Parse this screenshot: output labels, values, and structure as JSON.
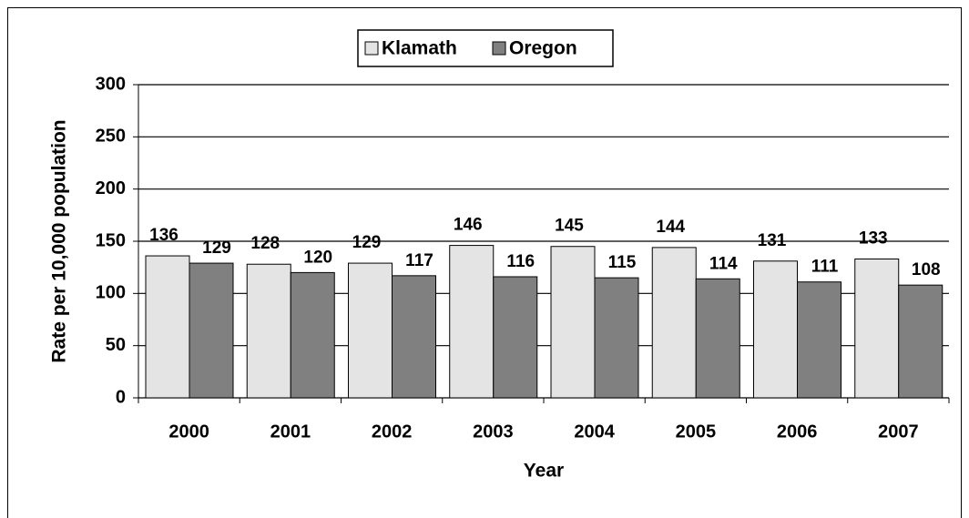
{
  "chart_data": {
    "type": "bar",
    "categories": [
      "2000",
      "2001",
      "2002",
      "2003",
      "2004",
      "2005",
      "2006",
      "2007"
    ],
    "series": [
      {
        "name": "Klamath",
        "color": "#e4e4e4",
        "values": [
          136,
          128,
          129,
          146,
          145,
          144,
          131,
          133
        ]
      },
      {
        "name": "Oregon",
        "color": "#808080",
        "values": [
          129,
          120,
          117,
          116,
          115,
          114,
          111,
          108
        ]
      }
    ],
    "x_label": "Year",
    "y_label": "Rate per 10,000 population",
    "ylim": [
      0,
      300
    ],
    "yticks": [
      0,
      50,
      100,
      150,
      200,
      250,
      300
    ],
    "grid": true,
    "legend": "top"
  }
}
